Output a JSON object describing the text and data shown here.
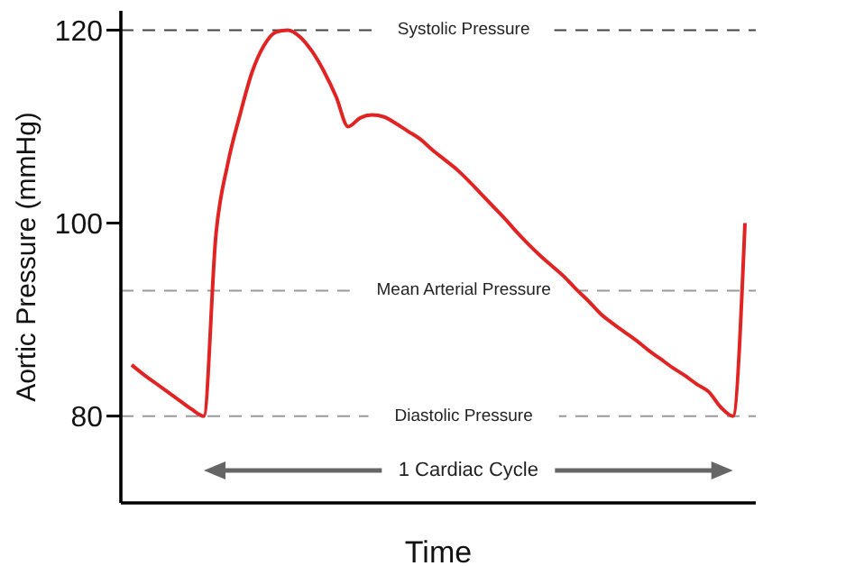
{
  "chart_data": {
    "type": "line",
    "ylabel": "Aortic Pressure (mmHg)",
    "xlabel": "Time",
    "categories": [
      null,
      null,
      null,
      null,
      null,
      null,
      null,
      null,
      null,
      null,
      null,
      null,
      null,
      null,
      null,
      null,
      null,
      null,
      null,
      null,
      null,
      null,
      null,
      null,
      null,
      null,
      null,
      null,
      null,
      null,
      null,
      null,
      null,
      null,
      null,
      null,
      null,
      null,
      null,
      null,
      null,
      null,
      null,
      null,
      null,
      null,
      null,
      null,
      null,
      null,
      null,
      null
    ],
    "values": [
      85.3,
      84.3,
      83.4,
      82.5,
      81.6,
      80.7,
      80,
      98.7,
      106.2,
      111.2,
      115.6,
      118.4,
      119.8,
      120,
      119.3,
      117.8,
      115.7,
      113.1,
      110,
      110.9,
      111.2,
      111,
      110.3,
      109.5,
      108.7,
      107.6,
      106.6,
      105.6,
      104.4,
      103.1,
      101.8,
      100.5,
      99.1,
      97.8,
      96.6,
      95.5,
      94.4,
      93.1,
      91.9,
      90.6,
      89.6,
      88.7,
      87.8,
      86.8,
      85.9,
      85,
      84.2,
      83.3,
      82.5,
      80.9,
      80,
      100
    ],
    "color": "#e02424",
    "line_style": "solid",
    "marker": "none",
    "ylim": [
      71,
      122
    ],
    "yticks": [
      80,
      100,
      120
    ],
    "ref_lines": [
      {
        "axis": "y",
        "value": 120,
        "label": "Systolic Pressure",
        "color": "#444444",
        "line_style": "dashed"
      },
      {
        "axis": "y",
        "value": 93,
        "label": "Mean Arterial Pressure",
        "color": "#999999",
        "line_style": "dashed"
      },
      {
        "axis": "y",
        "value": 80,
        "label": "Diastolic Pressure",
        "color": "#999999",
        "line_style": "dashed"
      }
    ],
    "annotations": [
      "1 Cardiac Cycle"
    ],
    "tick_labels": "y",
    "grid": false,
    "legend": false
  }
}
